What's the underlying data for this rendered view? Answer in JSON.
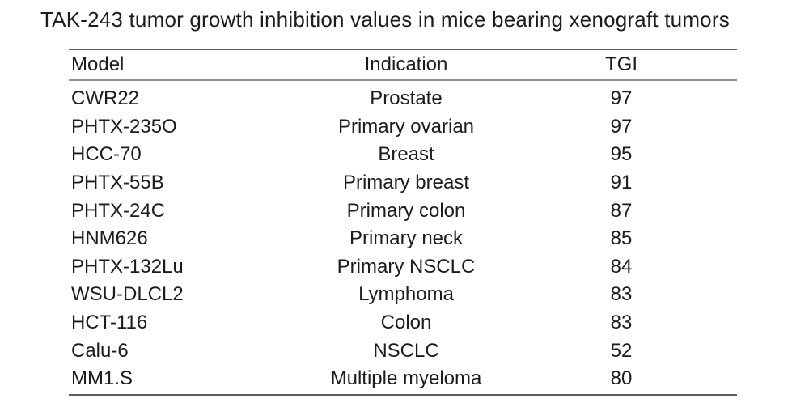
{
  "title": "TAK-243 tumor growth inhibition values in mice bearing xenograft tumors",
  "table": {
    "columns": [
      {
        "key": "model",
        "label": "Model"
      },
      {
        "key": "indication",
        "label": "Indication"
      },
      {
        "key": "tgi",
        "label": "TGI"
      }
    ],
    "rows": [
      {
        "model": "CWR22",
        "indication": "Prostate",
        "tgi": "97"
      },
      {
        "model": "PHTX-235O",
        "indication": "Primary ovarian",
        "tgi": "97"
      },
      {
        "model": "HCC-70",
        "indication": "Breast",
        "tgi": "95"
      },
      {
        "model": "PHTX-55B",
        "indication": "Primary breast",
        "tgi": "91"
      },
      {
        "model": "PHTX-24C",
        "indication": "Primary colon",
        "tgi": "87"
      },
      {
        "model": "HNM626",
        "indication": "Primary neck",
        "tgi": "85"
      },
      {
        "model": "PHTX-132Lu",
        "indication": "Primary NSCLC",
        "tgi": "84"
      },
      {
        "model": "WSU-DLCL2",
        "indication": "Lymphoma",
        "tgi": "83"
      },
      {
        "model": "HCT-116",
        "indication": "Colon",
        "tgi": "83"
      },
      {
        "model": "Calu-6",
        "indication": "NSCLC",
        "tgi": "52"
      },
      {
        "model": "MM1.S",
        "indication": "Multiple myeloma",
        "tgi": "80"
      }
    ]
  },
  "colors": {
    "text": "#1c1c1c",
    "rule-dark": "#5e5e5e",
    "rule-light": "#8f8f8f",
    "background": "#ffffff"
  }
}
